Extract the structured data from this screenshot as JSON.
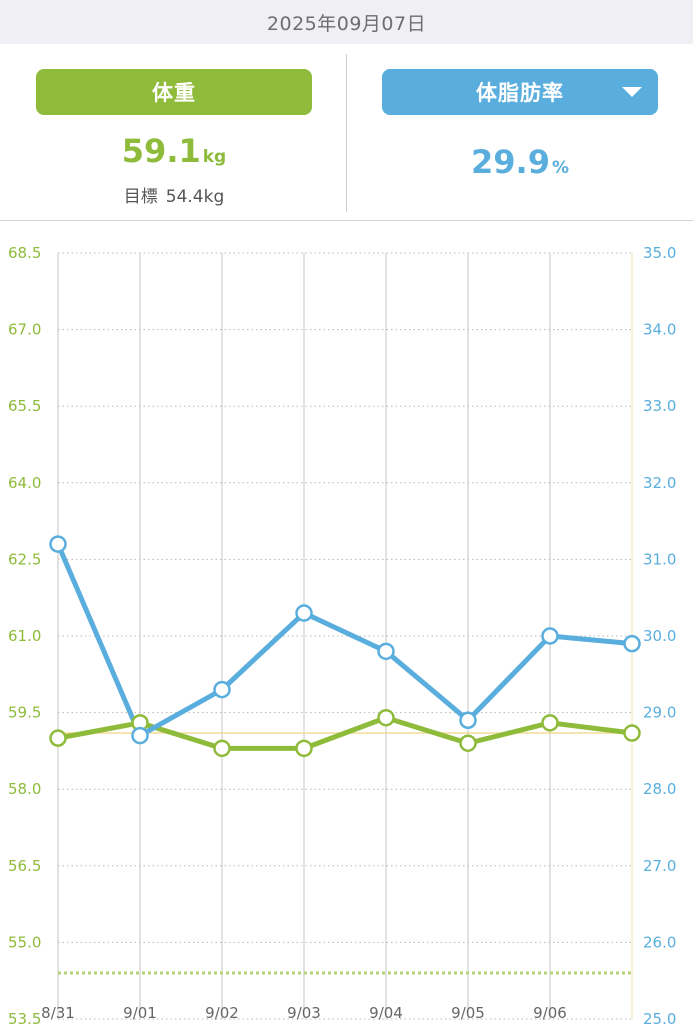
{
  "header": {
    "date": "2025年09月07日"
  },
  "summary": {
    "weight": {
      "label": "体重",
      "value": "59.1",
      "unit": "kg",
      "goal_label": "目標",
      "goal_value": "54.4kg"
    },
    "body_fat": {
      "label": "体脂肪率",
      "value": "29.9",
      "unit": "%"
    }
  },
  "colors": {
    "weight": "#8fbb3b",
    "body_fat": "#5aaede",
    "goal_line": "#b5d47a",
    "current_line": "#f3dc9a"
  },
  "chart_data": {
    "type": "line",
    "x": [
      "8/31",
      "9/01",
      "9/02",
      "9/03",
      "9/04",
      "9/05",
      "9/06",
      "9/07"
    ],
    "x_tick_labels": [
      "8/31",
      "9/01",
      "9/02",
      "9/03",
      "9/04",
      "9/05",
      "9/06"
    ],
    "y_left": {
      "ylim": [
        53.5,
        68.5
      ],
      "ticks": [
        "68.5",
        "67.0",
        "65.5",
        "64.0",
        "62.5",
        "61.0",
        "59.5",
        "58.0",
        "56.5",
        "55.0",
        "53.5"
      ]
    },
    "y_right": {
      "ylim": [
        25.0,
        35.0
      ],
      "ticks": [
        "35.0",
        "34.0",
        "33.0",
        "32.0",
        "31.0",
        "30.0",
        "29.0",
        "28.0",
        "27.0",
        "26.0",
        "25.0"
      ]
    },
    "series": [
      {
        "axis": "left",
        "color": "#8fbb3b",
        "values": [
          59.0,
          59.3,
          58.8,
          58.8,
          59.4,
          58.9,
          59.3,
          59.1
        ]
      },
      {
        "axis": "right",
        "color": "#5aaede",
        "values": [
          31.2,
          28.7,
          29.3,
          30.3,
          29.8,
          28.9,
          30.0,
          29.9
        ]
      }
    ],
    "goal": {
      "axis": "left",
      "value": 54.4
    },
    "grid": true
  }
}
